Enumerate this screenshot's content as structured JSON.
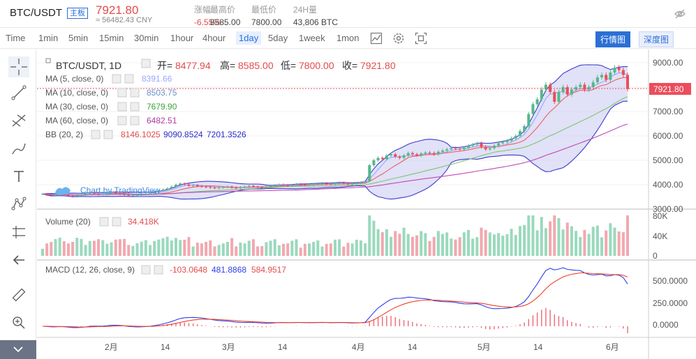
{
  "header": {
    "pair": "BTC/USDT",
    "badge": "主板",
    "last_price": "7921.80",
    "cny": "≈ 56482.43 CNY",
    "stats": [
      {
        "label": "涨幅",
        "value": "-6.55%"
      },
      {
        "label": "最高价",
        "value": "8585.00"
      },
      {
        "label": "最低价",
        "value": "7800.00"
      },
      {
        "label": "24H量",
        "value": "43,806 BTC"
      }
    ]
  },
  "toolbar": {
    "intervals": [
      "Time",
      "1min",
      "5min",
      "15min",
      "30min",
      "1hour",
      "4hour",
      "1day",
      "5day",
      "1week",
      "1mon"
    ],
    "active": "1day",
    "view_chart": "行情图",
    "view_depth": "深度图"
  },
  "legend": {
    "title": "BTC/USDT, 1D",
    "open_k": "开=",
    "open_v": "8477.94",
    "high_k": "高=",
    "high_v": "8585.00",
    "low_k": "低=",
    "low_v": "7800.00",
    "close_k": "收=",
    "close_v": "7921.80",
    "ma5": "MA (5, close, 0)",
    "ma5_v": "8391.66",
    "ma10": "MA (10, close, 0)",
    "ma10_v": "8503.75",
    "ma30": "MA (30, close, 0)",
    "ma30_v": "7679.90",
    "ma60": "MA (60, close, 0)",
    "ma60_v": "6482.51",
    "bb": "BB (20, 2)",
    "bb_mid": "8146.1025",
    "bb_up": "9090.8524",
    "bb_lo": "7201.3526",
    "volume": "Volume (20)",
    "volume_v": "34.418K",
    "macd": "MACD (12, 26, close, 9)",
    "macd_h": "-103.0648",
    "macd_m": "481.8868",
    "macd_s": "584.9517",
    "watermark": "Chart by TradingView"
  },
  "axes": {
    "price_ticks": [
      "9000.00",
      "8000.00",
      "7000.00",
      "6000.00",
      "5000.00",
      "4000.00",
      "3000.00"
    ],
    "price_tag": "7921.80",
    "vol_ticks": [
      "80K",
      "40K",
      "0"
    ],
    "macd_ticks": [
      "500.0000",
      "250.0000",
      "0.0000"
    ],
    "time_ticks": [
      "2月",
      "14",
      "3月",
      "14",
      "4月",
      "14",
      "5月",
      "14",
      "6月"
    ]
  },
  "colors": {
    "up": "#53b987",
    "down": "#eb4d5c",
    "ma5": "#9aa6ff",
    "ma10": "#f06060",
    "ma30": "#7cc576",
    "ma60": "#c04bb4",
    "bb_fill": "#c9c9f0",
    "bb_line": "#3a3acd",
    "macd_line": "#3040e8",
    "signal_line": "#f0402a"
  },
  "chart_data": {
    "type": "candlestick",
    "pair": "BTC/USDT",
    "interval": "1D",
    "price_range": [
      3000,
      9000
    ],
    "closes": [
      3620,
      3590,
      3560,
      3600,
      3640,
      3580,
      3550,
      3520,
      3570,
      3600,
      3630,
      3680,
      3640,
      3600,
      3620,
      3660,
      3700,
      3650,
      3610,
      3580,
      3550,
      3560,
      3580,
      3600,
      3620,
      3650,
      3700,
      3750,
      3800,
      3850,
      3920,
      4000,
      4050,
      4010,
      3960,
      3980,
      3940,
      3920,
      3900,
      3880,
      3860,
      3880,
      3900,
      3920,
      3880,
      3860,
      3900,
      3920,
      3950,
      3920,
      3900,
      3890,
      3920,
      3950,
      3980,
      4010,
      3980,
      3960,
      3990,
      4020,
      4010,
      3980,
      4000,
      4020,
      4040,
      4060,
      4030,
      4010,
      4050,
      4080,
      4060,
      4020,
      4040,
      4080,
      4100,
      4150,
      4800,
      5000,
      5100,
      5050,
      5200,
      5250,
      5150,
      5100,
      5200,
      5300,
      5250,
      5200,
      5280,
      5320,
      5300,
      5250,
      5350,
      5400,
      5450,
      5500,
      5480,
      5450,
      5520,
      5600,
      5650,
      5700,
      5550,
      5450,
      5500,
      5600,
      5700,
      5750,
      5800,
      5900,
      6000,
      6200,
      6400,
      6900,
      7300,
      7500,
      7900,
      8100,
      7800,
      7400,
      7800,
      8000,
      7700,
      7900,
      8000,
      8100,
      7900,
      8000,
      8200,
      8400,
      8500,
      8300,
      8600,
      8800,
      8700,
      8500,
      7920
    ],
    "volume_ticks": [
      "80K",
      "40K",
      "0"
    ],
    "macd": {
      "histogram": -103.0648,
      "macd": 481.8868,
      "signal": 584.9517
    }
  }
}
